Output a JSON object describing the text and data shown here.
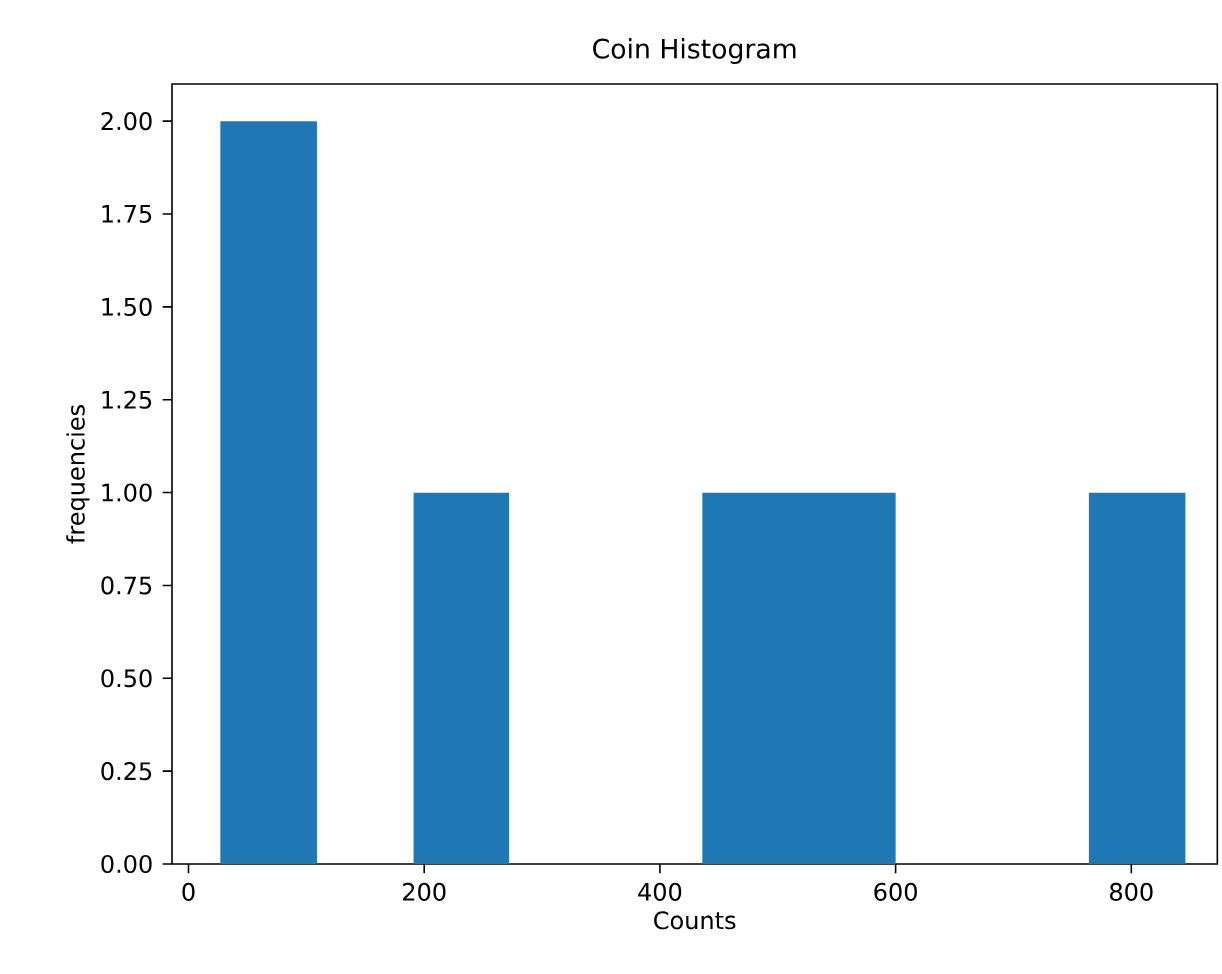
{
  "chart_data": {
    "type": "histogram",
    "title": "Coin Histogram",
    "xlabel": "Counts",
    "ylabel": "frequencies",
    "bins": [
      27,
      109,
      191,
      272,
      436,
      600,
      764,
      846
    ],
    "values": [
      2,
      0,
      1,
      0,
      1,
      0,
      1
    ],
    "color": "#1f77b4",
    "xlim": [
      -14,
      873
    ],
    "ylim": [
      0,
      2.1
    ],
    "xticks": [
      0,
      200,
      400,
      600,
      800
    ],
    "yticks": [
      {
        "value": 0,
        "label": "0.00"
      },
      {
        "value": 0.25,
        "label": "0.25"
      },
      {
        "value": 0.5,
        "label": "0.50"
      },
      {
        "value": 0.75,
        "label": "0.75"
      },
      {
        "value": 1,
        "label": "1.00"
      },
      {
        "value": 1.25,
        "label": "1.25"
      },
      {
        "value": 1.5,
        "label": "1.50"
      },
      {
        "value": 1.75,
        "label": "1.75"
      },
      {
        "value": 2,
        "label": "2.00"
      }
    ],
    "grid": false
  }
}
